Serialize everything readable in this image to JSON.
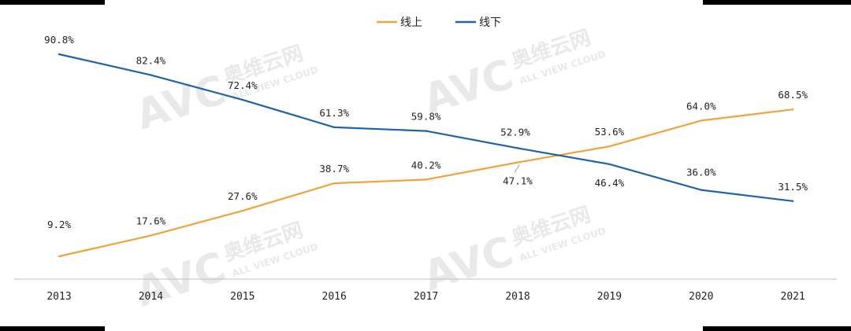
{
  "chart_data": {
    "type": "line",
    "categories": [
      "2013",
      "2014",
      "2015",
      "2016",
      "2017",
      "2018",
      "2019",
      "2020",
      "2021"
    ],
    "series": [
      {
        "name": "线上",
        "color": "#f0a33a",
        "values": [
          9.2,
          17.6,
          27.6,
          38.7,
          40.2,
          47.1,
          53.6,
          64.0,
          68.5
        ],
        "labels": [
          "9.2%",
          "17.6%",
          "27.6%",
          "38.7%",
          "40.2%",
          "47.1%",
          "53.6%",
          "64.0%",
          "68.5%"
        ]
      },
      {
        "name": "线下",
        "color": "#1f64a8",
        "values": [
          90.8,
          82.4,
          72.4,
          61.3,
          59.8,
          52.9,
          46.4,
          36.0,
          31.5
        ],
        "labels": [
          "90.8%",
          "82.4%",
          "72.4%",
          "61.3%",
          "59.8%",
          "52.9%",
          "46.4%",
          "36.0%",
          "31.5%"
        ]
      }
    ],
    "ylim": [
      0,
      100
    ],
    "grid": false,
    "legend": "top-center",
    "xlabel": "",
    "ylabel": ""
  },
  "watermark": {
    "logo_text": "AVC",
    "cn_text": "奥维云网",
    "en_text": "ALL VIEW CLOUD"
  }
}
